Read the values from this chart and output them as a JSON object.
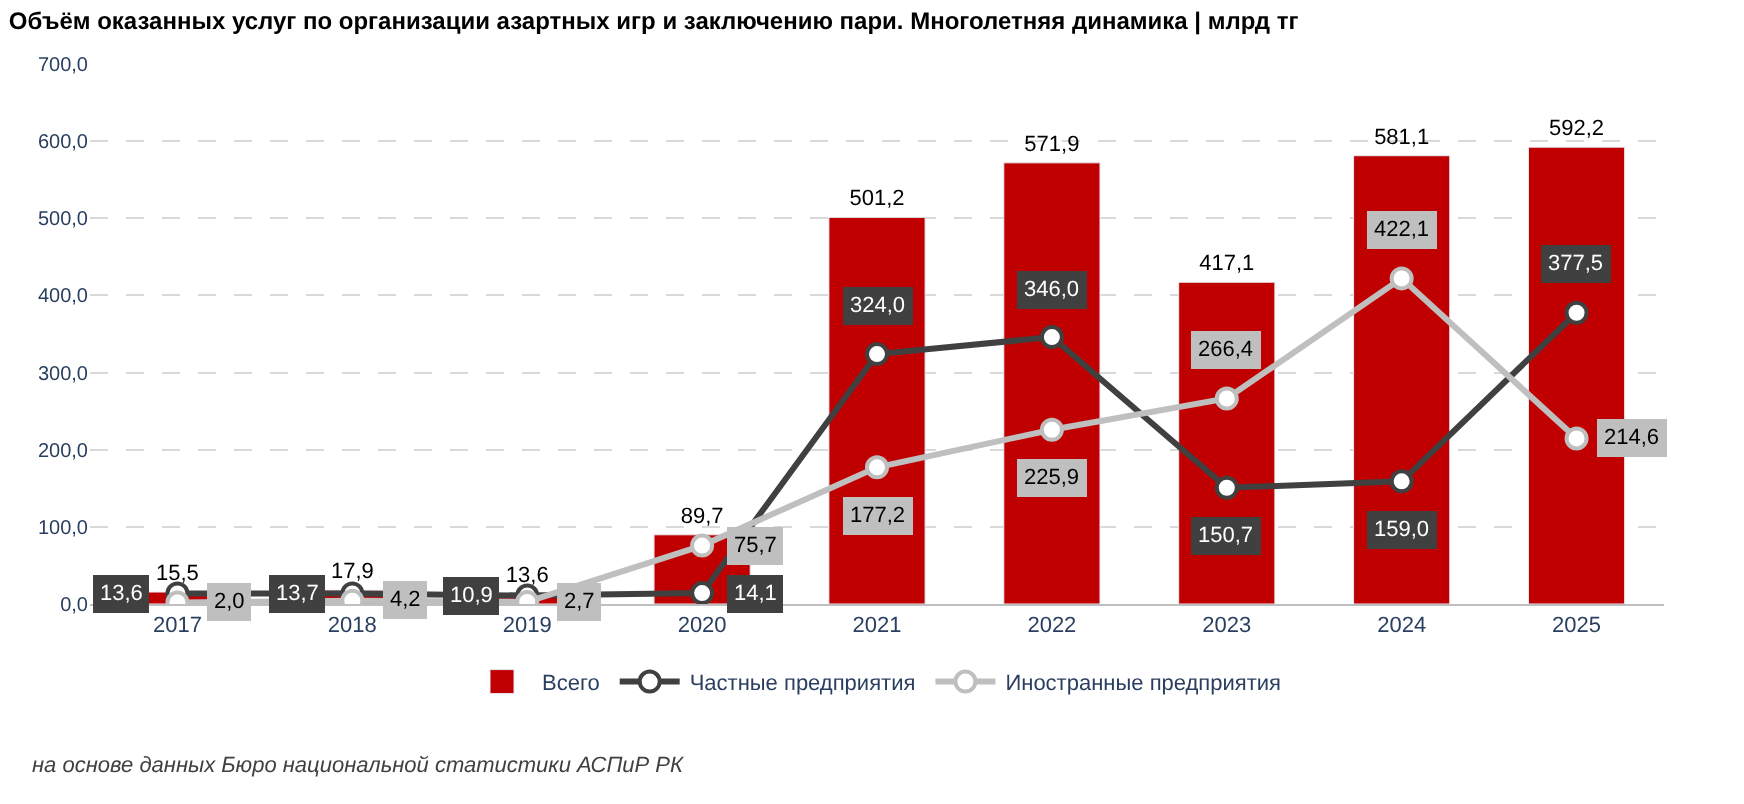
{
  "chart_data": {
    "type": "bar",
    "title": "Объём оказанных услуг по организации азартных игр и заключению пари. Многолетняя динамика | млрд тг",
    "categories": [
      "2017",
      "2018",
      "2019",
      "2020",
      "2021",
      "2022",
      "2023",
      "2024",
      "2025"
    ],
    "series": [
      {
        "name": "Всего",
        "color": "#c00000",
        "values": [
          15.5,
          17.9,
          13.6,
          89.7,
          501.2,
          571.9,
          417.1,
          581.1,
          592.2
        ],
        "value_labels": [
          "15,5",
          "17,9",
          "13,6",
          "89,7",
          "501,2",
          "571,9",
          "417,1",
          "581,1",
          "592,2"
        ]
      },
      {
        "name": "Частные предприятия",
        "type": "line",
        "color": "#404040",
        "values": [
          13.6,
          13.7,
          10.9,
          14.1,
          324.0,
          346.0,
          150.7,
          159.0,
          377.5
        ],
        "value_labels": [
          "13,6",
          "13,7",
          "10,9",
          "14,1",
          "324,0",
          "346,0",
          "150,7",
          "159,0",
          "377,5"
        ]
      },
      {
        "name": "Иностранные предприятия",
        "type": "line",
        "color": "#bfbfbf",
        "values": [
          2.0,
          4.2,
          2.7,
          75.7,
          177.2,
          225.9,
          266.4,
          422.1,
          214.6
        ],
        "value_labels": [
          "2,0",
          "4,2",
          "2,7",
          "75,7",
          "177,2",
          "225,9",
          "266,4",
          "422,1",
          "214,6"
        ]
      }
    ],
    "ylim": [
      0,
      700
    ],
    "yticks": [
      {
        "value": 0,
        "label": "0,0"
      },
      {
        "value": 100,
        "label": "100,0"
      },
      {
        "value": 200,
        "label": "200,0"
      },
      {
        "value": 300,
        "label": "300,0"
      },
      {
        "value": 400,
        "label": "400,0"
      },
      {
        "value": 500,
        "label": "500,0"
      },
      {
        "value": 600,
        "label": "600,0"
      },
      {
        "value": 700,
        "label": "700,0"
      }
    ],
    "grid": "y",
    "legend": "bottom",
    "marker": "circle",
    "line_style": "solid",
    "annotations": [
      "на основе данных Бюро национальной статистики АСПиР РК"
    ]
  }
}
